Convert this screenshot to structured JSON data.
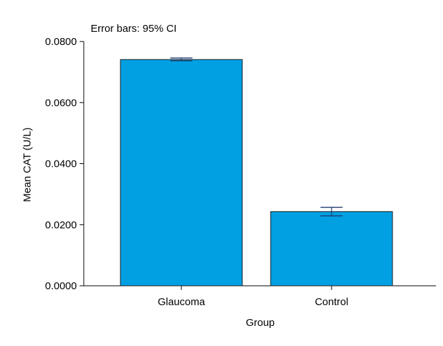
{
  "chart_data": {
    "type": "bar",
    "annotation": "Error bars: 95% CI",
    "xlabel": "Group",
    "ylabel": "Mean CAT (U/L)",
    "categories": [
      "Glaucoma",
      "Control"
    ],
    "values": [
      0.0741,
      0.0243
    ],
    "ci_lower": [
      0.0737,
      0.0229
    ],
    "ci_upper": [
      0.0746,
      0.0257
    ],
    "ylim": [
      0,
      0.08
    ],
    "yticks": [
      0.0,
      0.02,
      0.04,
      0.06,
      0.08
    ],
    "ytick_labels": [
      "0.0000",
      "0.0200",
      "0.0400",
      "0.0600",
      "0.0800"
    ],
    "grid": false,
    "colors": {
      "bar_fill": "#00A0E3",
      "bar_stroke": "#1A1A1A",
      "error_bar": "#1F3A6B",
      "axis": "#000000"
    }
  }
}
